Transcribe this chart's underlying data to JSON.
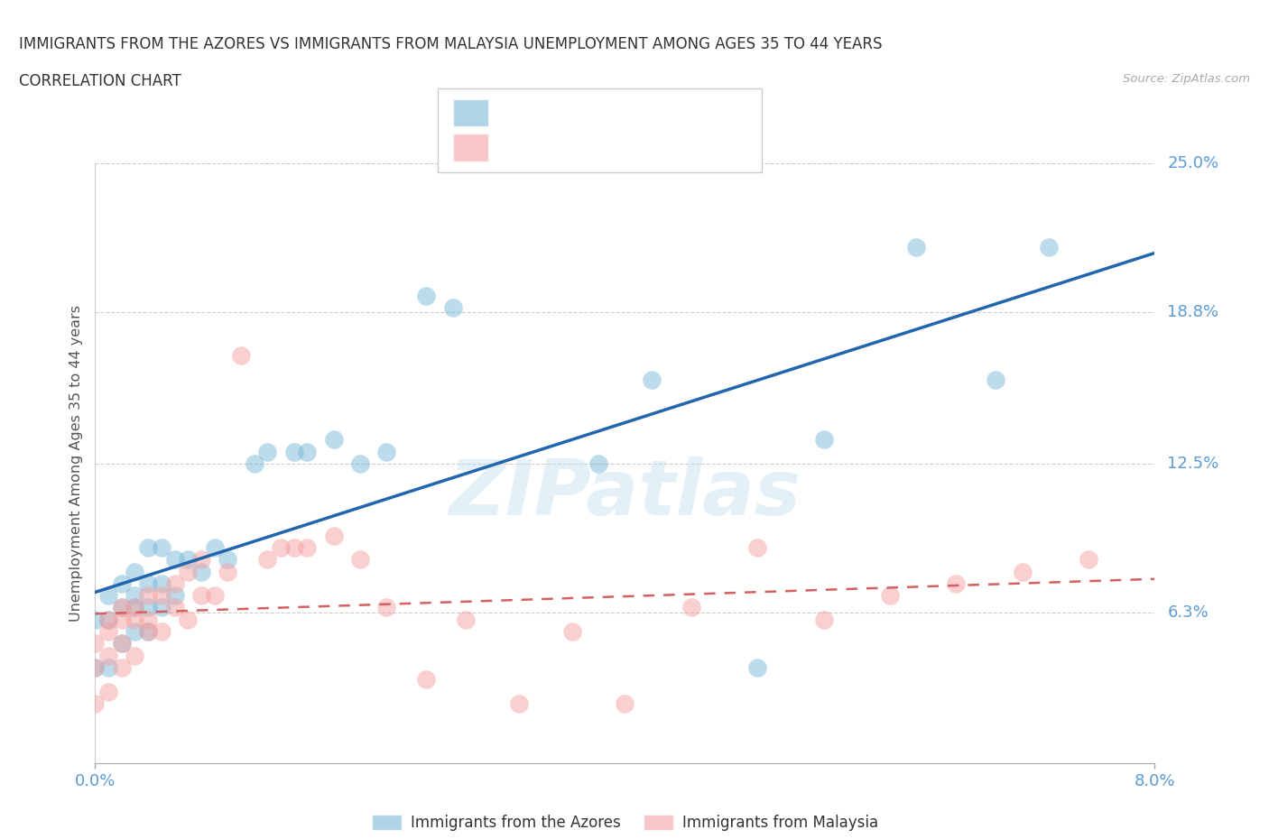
{
  "title_line1": "IMMIGRANTS FROM THE AZORES VS IMMIGRANTS FROM MALAYSIA UNEMPLOYMENT AMONG AGES 35 TO 44 YEARS",
  "title_line2": "CORRELATION CHART",
  "source": "Source: ZipAtlas.com",
  "ylabel": "Unemployment Among Ages 35 to 44 years",
  "xlim": [
    0.0,
    0.08
  ],
  "ylim": [
    0.0,
    0.25
  ],
  "ytick_vals": [
    0.063,
    0.125,
    0.188,
    0.25
  ],
  "ytick_labels": [
    "6.3%",
    "12.5%",
    "18.8%",
    "25.0%"
  ],
  "xtick_vals": [
    0.0,
    0.08
  ],
  "xtick_labels": [
    "0.0%",
    "8.0%"
  ],
  "grid_color": "#cccccc",
  "bg_color": "#ffffff",
  "series1_color": "#7ab8d9",
  "series2_color": "#f4a0a0",
  "line1_color": "#2166ac",
  "line2_color": "#d46060",
  "series1_label": "Immigrants from the Azores",
  "series2_label": "Immigrants from Malaysia",
  "tick_color": "#5b9bd5",
  "title_color": "#333333",
  "ylabel_color": "#555555",
  "watermark": "ZIPatlas",
  "azores_x": [
    0.0,
    0.0,
    0.001,
    0.001,
    0.001,
    0.002,
    0.002,
    0.002,
    0.003,
    0.003,
    0.003,
    0.003,
    0.004,
    0.004,
    0.004,
    0.004,
    0.005,
    0.005,
    0.005,
    0.006,
    0.006,
    0.007,
    0.008,
    0.009,
    0.01,
    0.012,
    0.013,
    0.015,
    0.016,
    0.018,
    0.02,
    0.022,
    0.025,
    0.027,
    0.038,
    0.042,
    0.05,
    0.055,
    0.062,
    0.068,
    0.072
  ],
  "azores_y": [
    0.04,
    0.06,
    0.04,
    0.06,
    0.07,
    0.05,
    0.065,
    0.075,
    0.055,
    0.065,
    0.07,
    0.08,
    0.055,
    0.065,
    0.075,
    0.09,
    0.065,
    0.075,
    0.09,
    0.07,
    0.085,
    0.085,
    0.08,
    0.09,
    0.085,
    0.125,
    0.13,
    0.13,
    0.13,
    0.135,
    0.125,
    0.13,
    0.195,
    0.19,
    0.125,
    0.16,
    0.04,
    0.135,
    0.215,
    0.16,
    0.215
  ],
  "malaysia_x": [
    0.0,
    0.0,
    0.0,
    0.001,
    0.001,
    0.001,
    0.001,
    0.002,
    0.002,
    0.002,
    0.002,
    0.003,
    0.003,
    0.003,
    0.004,
    0.004,
    0.004,
    0.005,
    0.005,
    0.006,
    0.006,
    0.007,
    0.007,
    0.008,
    0.008,
    0.009,
    0.01,
    0.011,
    0.013,
    0.014,
    0.015,
    0.016,
    0.018,
    0.02,
    0.022,
    0.025,
    0.028,
    0.032,
    0.036,
    0.04,
    0.045,
    0.05,
    0.055,
    0.06,
    0.065,
    0.07,
    0.075
  ],
  "malaysia_y": [
    0.025,
    0.04,
    0.05,
    0.03,
    0.045,
    0.055,
    0.06,
    0.04,
    0.05,
    0.06,
    0.065,
    0.045,
    0.06,
    0.065,
    0.055,
    0.06,
    0.07,
    0.055,
    0.07,
    0.065,
    0.075,
    0.06,
    0.08,
    0.07,
    0.085,
    0.07,
    0.08,
    0.17,
    0.085,
    0.09,
    0.09,
    0.09,
    0.095,
    0.085,
    0.065,
    0.035,
    0.06,
    0.025,
    0.055,
    0.025,
    0.065,
    0.09,
    0.06,
    0.07,
    0.075,
    0.08,
    0.085
  ]
}
